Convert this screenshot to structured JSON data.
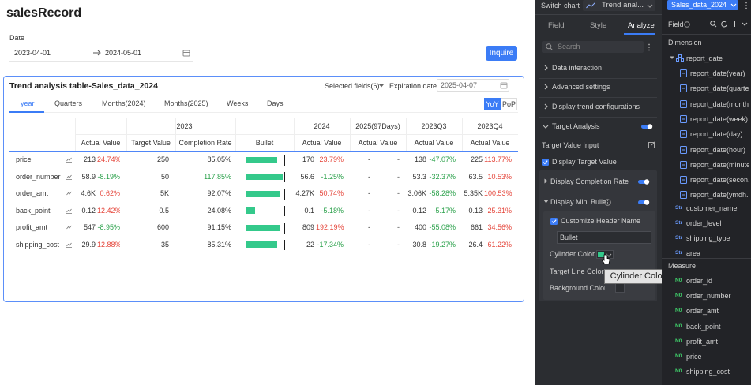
{
  "header": {
    "title": "salesRecord"
  },
  "filter": {
    "label": "Date",
    "start": "2023-04-01",
    "end": "2024-05-01",
    "button": "Inquire"
  },
  "card": {
    "title": "Trend analysis table-Sales_data_2024",
    "selected_fields": "Selected fields(6)",
    "expiration_label": "Expiration date",
    "expiration_date": "2025-04-07",
    "tabs": [
      "year",
      "Quarters",
      "Months(2024)",
      "Months(2025)",
      "Weeks",
      "Days"
    ],
    "compare": [
      "YoY",
      "PoP"
    ],
    "table": {
      "groups": [
        "2023",
        "2024",
        "2025(97Days)",
        "2023Q3",
        "2023Q4"
      ],
      "columns": [
        "Actual Value",
        "Target Value",
        "Completion Rate",
        "Bullet",
        "Actual Value",
        "Actual Value",
        "Actual Value",
        "Actual Value"
      ],
      "rows": [
        {
          "cells": [
            "price",
            "213",
            "24.74%",
            "250",
            "85.05%",
            "170",
            "23.79%",
            "-",
            "-",
            "138",
            "-47.07%",
            "225",
            "113.77%"
          ],
          "bullet": 85.05
        },
        {
          "cells": [
            "order_number",
            "58.9",
            "-8.19%",
            "50",
            "117.85%",
            "56.6",
            "-1.25%",
            "-",
            "-",
            "53.3",
            "-32.37%",
            "63.5",
            "10.53%"
          ],
          "bullet": 117.85
        },
        {
          "cells": [
            "order_amt",
            "4.6K",
            "0.62%",
            "5K",
            "92.07%",
            "4.27K",
            "50.74%",
            "-",
            "-",
            "3.06K",
            "-58.28%",
            "5.35K",
            "100.53%"
          ],
          "bullet": 92.07
        },
        {
          "cells": [
            "back_point",
            "0.12",
            "12.42%",
            "0.5",
            "24.08%",
            "0.1",
            "-5.18%",
            "-",
            "-",
            "0.12",
            "-5.17%",
            "0.13",
            "25.31%"
          ],
          "bullet": 24.08
        },
        {
          "cells": [
            "profit_amt",
            "547",
            "-8.95%",
            "600",
            "91.15%",
            "809",
            "192.19%",
            "-",
            "-",
            "400",
            "-55.08%",
            "661",
            "34.56%"
          ],
          "bullet": 91.15
        },
        {
          "cells": [
            "shipping_cost",
            "29.9",
            "12.88%",
            "35",
            "85.31%",
            "22",
            "-17.34%",
            "-",
            "-",
            "30.8",
            "-19.27%",
            "26.4",
            "61.22%"
          ],
          "bullet": 85.31
        }
      ]
    }
  },
  "config_panel": {
    "switch_label": "Switch chart",
    "chart_select": "Trend anal...",
    "tabs": [
      "Field",
      "Style",
      "Analyze"
    ],
    "search": "Search",
    "sections": [
      "Data interaction",
      "Advanced settings",
      "Display trend configurations"
    ],
    "target_analysis": "Target Analysis",
    "target_value_input": "Target Value Input",
    "display_target_value": "Display Target Value",
    "display_completion_rate": "Display Completion Rate",
    "display_mini_bullet": "Display Mini Bullet",
    "customize_header_name": "Customize Header Name",
    "header_name_value": "Bullet",
    "cylinder_color": "Cylinder Color",
    "target_line_color": "Target Line Color",
    "background_color": "Background Color",
    "tooltip": "Cylinder Color"
  },
  "field_panel": {
    "dataset": "Sales_data_2024",
    "title": "Field",
    "dimension_title": "Dimension",
    "measure_title": "Measure",
    "dimension_icon": "Str",
    "measure_icon": "N0",
    "date_field": "report_date",
    "date_children": [
      "report_date(year)",
      "report_date(quarter)",
      "report_date(month)",
      "report_date(week)",
      "report_date(day)",
      "report_date(hour)",
      "report_date(minute)",
      "report_date(secon...",
      "report_date(ymdh..."
    ],
    "dimensions": [
      "customer_name",
      "order_level",
      "shipping_type",
      "area"
    ],
    "measures": [
      "order_id",
      "order_number",
      "order_amt",
      "back_point",
      "profit_amt",
      "price",
      "shipping_cost"
    ]
  }
}
